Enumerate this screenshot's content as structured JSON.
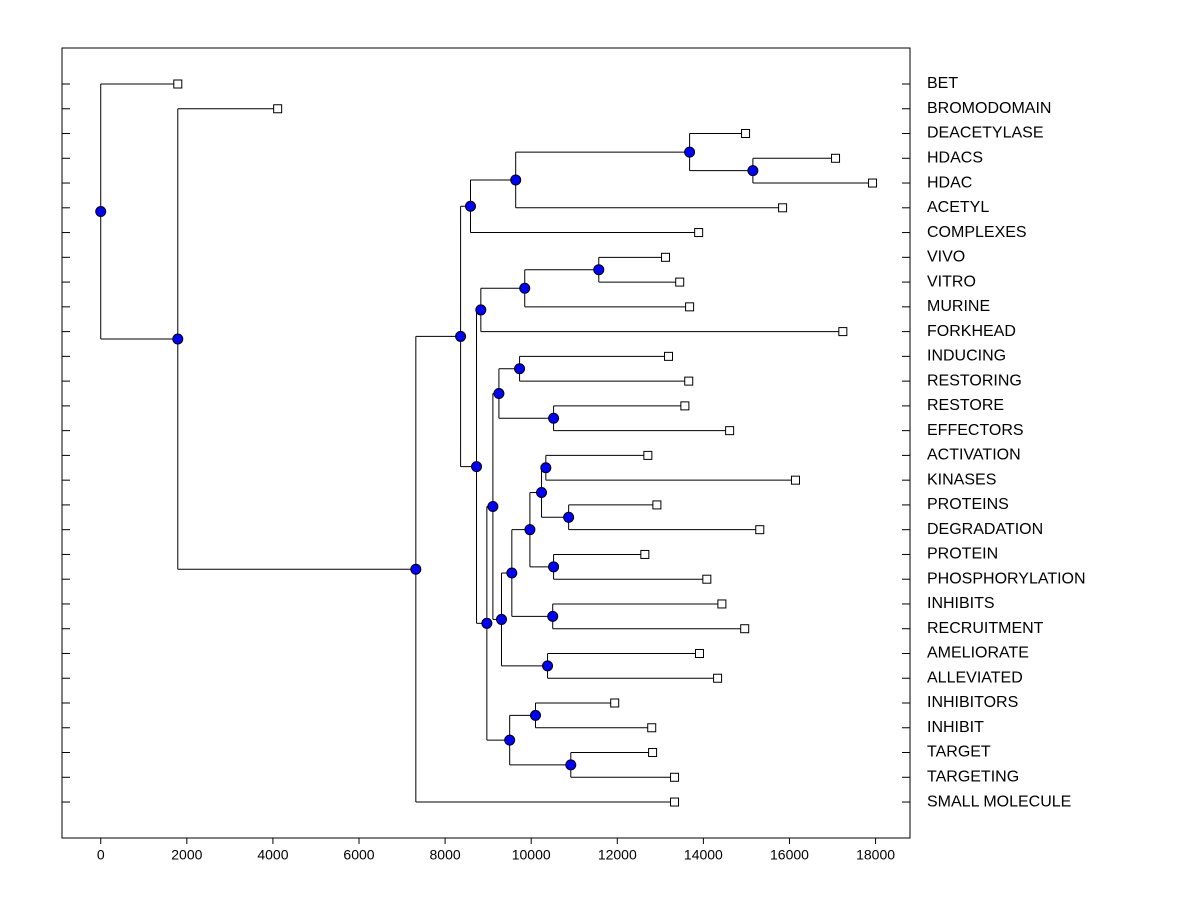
{
  "chart_data": {
    "type": "dendrogram",
    "xlim": [
      -900,
      18800
    ],
    "xticks": [
      0,
      2000,
      4000,
      6000,
      8000,
      10000,
      12000,
      14000,
      16000,
      18000
    ],
    "node_color": "#0000ff",
    "tree": {
      "x": 0,
      "children": [
        {
          "label": "BET",
          "x": 1790
        },
        {
          "x": 1790,
          "children": [
            {
              "label": "BROMODOMAIN",
              "x": 4110
            },
            {
              "x": 7320,
              "children": [
                {
                  "x": 8360,
                  "children": [
                    {
                      "x": 8590,
                      "children": [
                        {
                          "x": 9640,
                          "children": [
                            {
                              "x": 13680,
                              "children": [
                                {
                                  "label": "DEACETYLASE",
                                  "x": 14980
                                },
                                {
                                  "x": 15150,
                                  "children": [
                                    {
                                      "label": "HDACS",
                                      "x": 17070
                                    },
                                    {
                                      "label": "HDAC",
                                      "x": 17930
                                    }
                                  ]
                                }
                              ]
                            },
                            {
                              "label": "ACETYL",
                              "x": 15840
                            }
                          ]
                        },
                        {
                          "label": "COMPLEXES",
                          "x": 13890
                        }
                      ]
                    },
                    {
                      "x": 8730,
                      "children": [
                        {
                          "x": 8830,
                          "children": [
                            {
                              "x": 9850,
                              "children": [
                                {
                                  "x": 11570,
                                  "children": [
                                    {
                                      "label": "VIVO",
                                      "x": 13120
                                    },
                                    {
                                      "label": "VITRO",
                                      "x": 13450
                                    }
                                  ]
                                },
                                {
                                  "label": "MURINE",
                                  "x": 13680
                                }
                              ]
                            },
                            {
                              "label": "FORKHEAD",
                              "x": 17240
                            }
                          ]
                        },
                        {
                          "x": 8970,
                          "children": [
                            {
                              "x": 9110,
                              "children": [
                                {
                                  "x": 9250,
                                  "children": [
                                    {
                                      "x": 9730,
                                      "children": [
                                        {
                                          "label": "INDUCING",
                                          "x": 13190
                                        },
                                        {
                                          "label": "RESTORING",
                                          "x": 13660
                                        }
                                      ]
                                    },
                                    {
                                      "x": 10520,
                                      "children": [
                                        {
                                          "label": "RESTORE",
                                          "x": 13570
                                        },
                                        {
                                          "label": "EFFECTORS",
                                          "x": 14610
                                        }
                                      ]
                                    }
                                  ]
                                },
                                {
                                  "x": 9310,
                                  "children": [
                                    {
                                      "x": 9550,
                                      "children": [
                                        {
                                          "x": 9970,
                                          "children": [
                                            {
                                              "x": 10240,
                                              "children": [
                                                {
                                                  "x": 10340,
                                                  "children": [
                                                    {
                                                      "label": "ACTIVATION",
                                                      "x": 12710
                                                    },
                                                    {
                                                      "label": "KINASES",
                                                      "x": 16140
                                                    }
                                                  ]
                                                },
                                                {
                                                  "x": 10870,
                                                  "children": [
                                                    {
                                                      "label": "PROTEINS",
                                                      "x": 12920
                                                    },
                                                    {
                                                      "label": "DEGRADATION",
                                                      "x": 15310
                                                    }
                                                  ]
                                                }
                                              ]
                                            },
                                            {
                                              "x": 10520,
                                              "children": [
                                                {
                                                  "label": "PROTEIN",
                                                  "x": 12640
                                                },
                                                {
                                                  "label": "PHOSPHORYLATION",
                                                  "x": 14080
                                                }
                                              ]
                                            }
                                          ]
                                        },
                                        {
                                          "x": 10500,
                                          "children": [
                                            {
                                              "label": "INHIBITS",
                                              "x": 14430
                                            },
                                            {
                                              "label": "RECRUITMENT",
                                              "x": 14960
                                            }
                                          ]
                                        }
                                      ]
                                    },
                                    {
                                      "x": 10380,
                                      "children": [
                                        {
                                          "label": "AMELIORATE",
                                          "x": 13910
                                        },
                                        {
                                          "label": "ALLEVIATED",
                                          "x": 14330
                                        }
                                      ]
                                    }
                                  ]
                                }
                              ]
                            },
                            {
                              "x": 9500,
                              "children": [
                                {
                                  "x": 10100,
                                  "children": [
                                    {
                                      "label": "INHIBITORS",
                                      "x": 11940
                                    },
                                    {
                                      "label": "INHIBIT",
                                      "x": 12800
                                    }
                                  ]
                                },
                                {
                                  "x": 10920,
                                  "children": [
                                    {
                                      "label": "TARGET",
                                      "x": 12820
                                    },
                                    {
                                      "label": "TARGETING",
                                      "x": 13330
                                    }
                                  ]
                                }
                              ]
                            }
                          ]
                        }
                      ]
                    }
                  ]
                },
                {
                  "label": "SMALL MOLECULE",
                  "x": 13330
                }
              ]
            }
          ]
        }
      ]
    }
  }
}
